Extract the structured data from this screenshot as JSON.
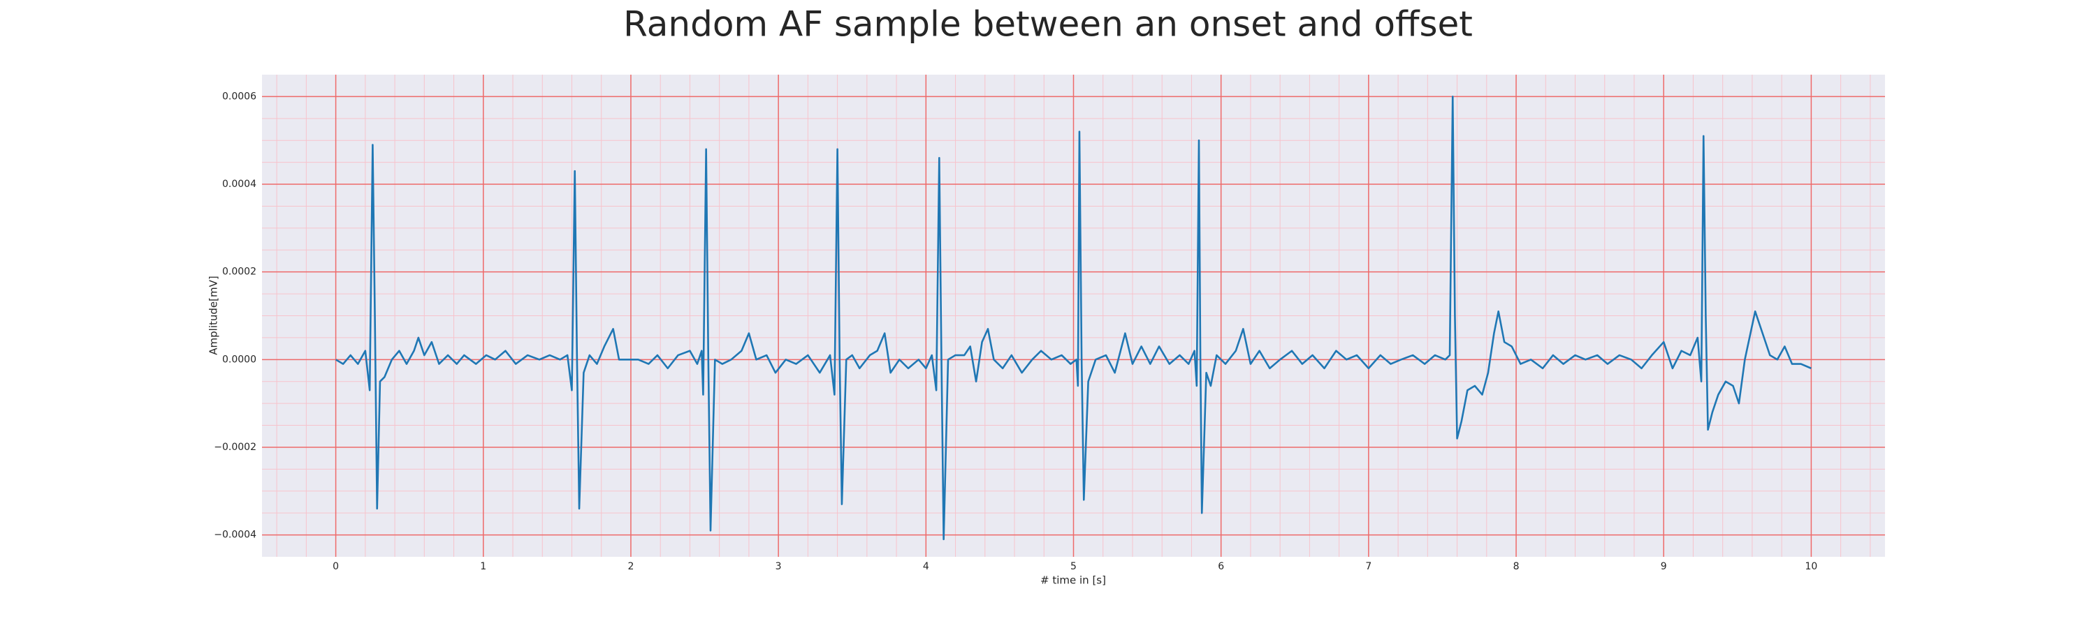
{
  "chart_data": {
    "type": "line",
    "title": "Random AF sample between an onset and offset",
    "xlabel": "# time in [s]",
    "ylabel": "Amplitude[mV]",
    "x": [
      0.0,
      0.05,
      0.1,
      0.15,
      0.2,
      0.23,
      0.25,
      0.265,
      0.28,
      0.3,
      0.33,
      0.38,
      0.43,
      0.48,
      0.53,
      0.56,
      0.6,
      0.65,
      0.7,
      0.76,
      0.82,
      0.87,
      0.95,
      1.02,
      1.08,
      1.15,
      1.22,
      1.3,
      1.38,
      1.45,
      1.52,
      1.57,
      1.6,
      1.62,
      1.635,
      1.65,
      1.68,
      1.72,
      1.77,
      1.82,
      1.88,
      1.92,
      1.98,
      2.05,
      2.12,
      2.18,
      2.25,
      2.32,
      2.4,
      2.45,
      2.48,
      2.49,
      2.51,
      2.525,
      2.54,
      2.57,
      2.62,
      2.68,
      2.75,
      2.8,
      2.85,
      2.92,
      2.98,
      3.05,
      3.12,
      3.2,
      3.28,
      3.35,
      3.38,
      3.4,
      3.415,
      3.43,
      3.46,
      3.5,
      3.55,
      3.62,
      3.67,
      3.72,
      3.76,
      3.82,
      3.88,
      3.95,
      4.0,
      4.04,
      4.07,
      4.09,
      4.105,
      4.12,
      4.15,
      4.2,
      4.26,
      4.3,
      4.34,
      4.38,
      4.42,
      4.46,
      4.52,
      4.58,
      4.65,
      4.72,
      4.78,
      4.85,
      4.92,
      4.98,
      5.02,
      5.03,
      5.04,
      5.055,
      5.07,
      5.1,
      5.15,
      5.22,
      5.28,
      5.35,
      5.4,
      5.46,
      5.52,
      5.58,
      5.65,
      5.72,
      5.78,
      5.82,
      5.835,
      5.85,
      5.86,
      5.87,
      5.9,
      5.93,
      5.97,
      6.03,
      6.1,
      6.15,
      6.2,
      6.26,
      6.33,
      6.4,
      6.48,
      6.55,
      6.62,
      6.7,
      6.78,
      6.85,
      6.92,
      7.0,
      7.08,
      7.15,
      7.22,
      7.3,
      7.38,
      7.45,
      7.52,
      7.55,
      7.57,
      7.585,
      7.6,
      7.63,
      7.67,
      7.72,
      7.77,
      7.81,
      7.85,
      7.88,
      7.92,
      7.97,
      8.03,
      8.1,
      8.18,
      8.25,
      8.32,
      8.4,
      8.47,
      8.55,
      8.62,
      8.7,
      8.78,
      8.85,
      8.92,
      9.0,
      9.06,
      9.12,
      9.18,
      9.23,
      9.255,
      9.27,
      9.285,
      9.3,
      9.33,
      9.37,
      9.42,
      9.47,
      9.51,
      9.55,
      9.62,
      9.67,
      9.72,
      9.77,
      9.82,
      9.87,
      9.93,
      10.0
    ],
    "series": [
      {
        "color": "#1f77b4",
        "values": [
          0.0,
          -1e-05,
          1e-05,
          -1e-05,
          2e-05,
          -7e-05,
          0.00049,
          0.0001,
          -0.00034,
          -5e-05,
          -4e-05,
          0.0,
          2e-05,
          -1e-05,
          2e-05,
          5e-05,
          1e-05,
          4e-05,
          -1e-05,
          1e-05,
          -1e-05,
          1e-05,
          -1e-05,
          1e-05,
          0.0,
          2e-05,
          -1e-05,
          1e-05,
          0.0,
          1e-05,
          0.0,
          1e-05,
          -7e-05,
          0.00043,
          0.0,
          -0.00034,
          -3e-05,
          1e-05,
          -1e-05,
          3e-05,
          7e-05,
          0.0,
          0.0,
          0.0,
          -1e-05,
          1e-05,
          -2e-05,
          1e-05,
          2e-05,
          -1e-05,
          2e-05,
          -8e-05,
          0.00048,
          0.0,
          -0.00039,
          0.0,
          -1e-05,
          0.0,
          2e-05,
          6e-05,
          0.0,
          1e-05,
          -3e-05,
          0.0,
          -1e-05,
          1e-05,
          -3e-05,
          1e-05,
          -8e-05,
          0.00048,
          0.0,
          -0.00033,
          0.0,
          1e-05,
          -2e-05,
          1e-05,
          2e-05,
          6e-05,
          -3e-05,
          0.0,
          -2e-05,
          0.0,
          -2e-05,
          1e-05,
          -7e-05,
          0.00046,
          0.0,
          -0.00041,
          0.0,
          1e-05,
          1e-05,
          3e-05,
          -5e-05,
          4e-05,
          7e-05,
          0.0,
          -2e-05,
          1e-05,
          -3e-05,
          0.0,
          2e-05,
          0.0,
          1e-05,
          -1e-05,
          0.0,
          -6e-05,
          0.00052,
          0.0,
          -0.00032,
          -5e-05,
          0.0,
          1e-05,
          -3e-05,
          6e-05,
          -1e-05,
          3e-05,
          -1e-05,
          3e-05,
          -1e-05,
          1e-05,
          -1e-05,
          2e-05,
          -6e-05,
          0.0005,
          0.0,
          -0.00035,
          -3e-05,
          -6e-05,
          1e-05,
          -1e-05,
          2e-05,
          7e-05,
          -1e-05,
          2e-05,
          -2e-05,
          0.0,
          2e-05,
          -1e-05,
          1e-05,
          -2e-05,
          2e-05,
          0.0,
          1e-05,
          -2e-05,
          1e-05,
          -1e-05,
          0.0,
          1e-05,
          -1e-05,
          1e-05,
          0.0,
          1e-05,
          0.0006,
          0.0001,
          -0.00018,
          -0.00014,
          -7e-05,
          -6e-05,
          -8e-05,
          -3e-05,
          6e-05,
          0.00011,
          4e-05,
          3e-05,
          -1e-05,
          0.0,
          -2e-05,
          1e-05,
          -1e-05,
          1e-05,
          0.0,
          1e-05,
          -1e-05,
          1e-05,
          0.0,
          -2e-05,
          1e-05,
          4e-05,
          -2e-05,
          2e-05,
          1e-05,
          5e-05,
          -5e-05,
          0.00051,
          0.0001,
          -0.00016,
          -0.00012,
          -8e-05,
          -5e-05,
          -6e-05,
          -0.0001,
          0.0,
          0.00011,
          6e-05,
          1e-05,
          0.0,
          3e-05,
          -1e-05,
          -1e-05,
          -2e-05
        ]
      }
    ],
    "xlim": [
      -0.5,
      10.5
    ],
    "xticks": [
      0,
      1,
      2,
      3,
      4,
      5,
      6,
      7,
      8,
      9,
      10
    ],
    "ylim": [
      -0.00045,
      0.00065
    ],
    "yticks": [
      {
        "value": -0.0004,
        "label": "−0.0004"
      },
      {
        "value": -0.0002,
        "label": "−0.0002"
      },
      {
        "value": 0,
        "label": "0.0000"
      },
      {
        "value": 0.0002,
        "label": "0.0002"
      },
      {
        "value": 0.0004,
        "label": "0.0004"
      },
      {
        "value": 0.0006,
        "label": "0.0006"
      }
    ],
    "grid": true,
    "minor_grid": true
  }
}
